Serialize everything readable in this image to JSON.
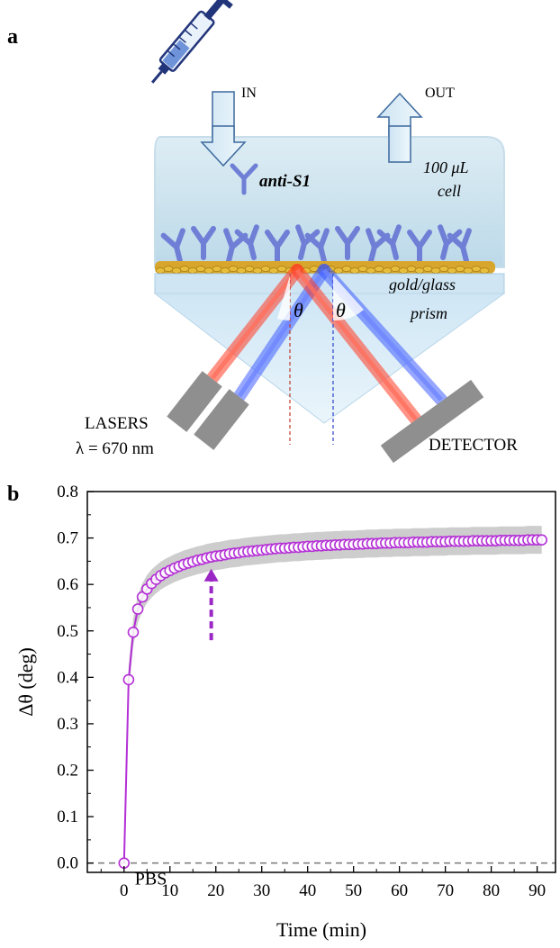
{
  "panel_a": {
    "label": "a",
    "inlet_label": "IN",
    "outlet_label": "OUT",
    "analyte_label": "anti-S1",
    "cell_volume": "100 μL",
    "cell_word": "cell",
    "surface_label": "gold/glass",
    "prism_label": "prism",
    "angle_symbol": "θ",
    "lasers_label": "LASERS",
    "wavelength_label": "λ = 670 nm",
    "detector_label": "DETECTOR"
  },
  "panel_b": {
    "label": "b",
    "baseline_label": "PBS"
  },
  "chart_data": {
    "type": "line",
    "title": "",
    "xlabel": "Time (min)",
    "ylabel": "Δθ (deg)",
    "xlim": [
      -8,
      94
    ],
    "ylim": [
      -0.02,
      0.8
    ],
    "xticks": [
      0,
      10,
      20,
      30,
      40,
      50,
      60,
      70,
      80,
      90
    ],
    "yticks": [
      0.0,
      0.1,
      0.2,
      0.3,
      0.4,
      0.5,
      0.6,
      0.7,
      0.8
    ],
    "grid": false,
    "baseline_y": 0.0,
    "marker_color": "#b42fd6",
    "line_color": "#b42fd6",
    "band_color": "#c8c8c8",
    "annotation_arrow": {
      "x": 19,
      "from_y": 0.48,
      "to_y": 0.63,
      "color": "#9b27c4"
    },
    "series": [
      {
        "x": [
          0,
          1,
          2,
          3,
          4,
          5,
          6,
          7,
          8,
          9,
          10,
          11,
          12,
          13,
          14,
          15,
          16,
          17,
          18,
          19,
          20,
          21,
          22,
          23,
          24,
          25,
          26,
          27,
          28,
          29,
          30,
          31,
          32,
          33,
          34,
          35,
          36,
          37,
          38,
          39,
          40,
          41,
          42,
          43,
          44,
          45,
          46,
          47,
          48,
          49,
          50,
          51,
          52,
          53,
          54,
          55,
          56,
          57,
          58,
          59,
          60,
          61,
          62,
          63,
          64,
          65,
          66,
          67,
          68,
          69,
          70,
          71,
          72,
          73,
          74,
          75,
          76,
          77,
          78,
          79,
          80,
          81,
          82,
          83,
          84,
          85,
          86,
          87,
          88,
          89,
          90,
          91
        ],
        "y": [
          0.0,
          0.395,
          0.497,
          0.547,
          0.573,
          0.59,
          0.602,
          0.611,
          0.619,
          0.625,
          0.63,
          0.635,
          0.639,
          0.643,
          0.646,
          0.649,
          0.652,
          0.654,
          0.657,
          0.659,
          0.661,
          0.662,
          0.664,
          0.666,
          0.667,
          0.668,
          0.67,
          0.671,
          0.672,
          0.673,
          0.674,
          0.675,
          0.676,
          0.677,
          0.678,
          0.678,
          0.679,
          0.68,
          0.68,
          0.681,
          0.682,
          0.682,
          0.683,
          0.683,
          0.684,
          0.684,
          0.685,
          0.685,
          0.686,
          0.686,
          0.686,
          0.687,
          0.687,
          0.688,
          0.688,
          0.688,
          0.689,
          0.689,
          0.689,
          0.69,
          0.69,
          0.69,
          0.69,
          0.691,
          0.691,
          0.691,
          0.691,
          0.692,
          0.692,
          0.692,
          0.692,
          0.693,
          0.693,
          0.693,
          0.693,
          0.693,
          0.694,
          0.694,
          0.694,
          0.694,
          0.694,
          0.694,
          0.695,
          0.695,
          0.695,
          0.695,
          0.695,
          0.695,
          0.696,
          0.696,
          0.696,
          0.696
        ],
        "error_band_halfwidth": 0.03
      }
    ]
  }
}
